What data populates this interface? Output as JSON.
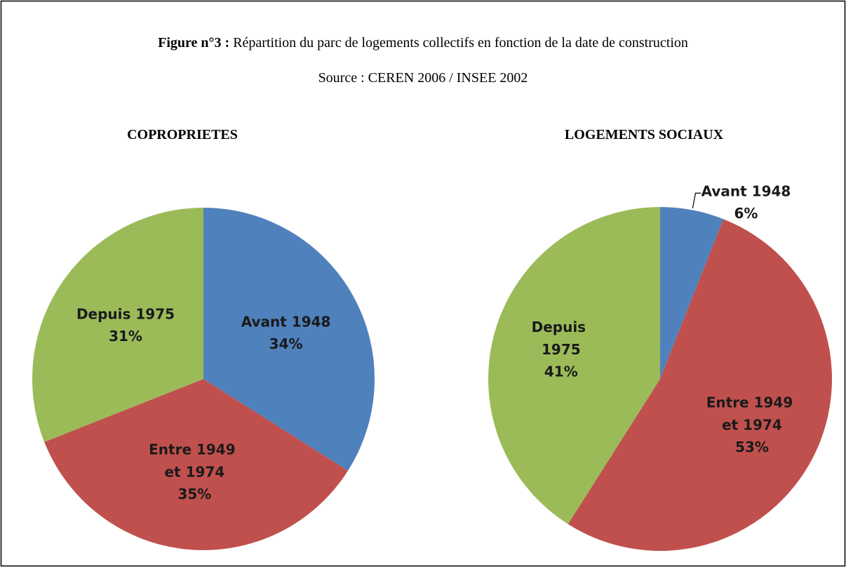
{
  "figure": {
    "label": "Figure n°3 :",
    "title": "Répartition du parc de logements collectifs en fonction de la date de construction",
    "source": "Source : CEREN 2006 / INSEE 2002"
  },
  "chart_data": [
    {
      "type": "pie",
      "title": "COPROPRIETES",
      "categories": [
        "Avant 1948",
        "Entre 1949 et 1974",
        "Depuis 1975"
      ],
      "values": [
        34,
        35,
        31
      ],
      "value_labels": [
        "34%",
        "35%",
        "31%"
      ],
      "colors": [
        "#4f81bd",
        "#c0504d",
        "#9bbb59"
      ]
    },
    {
      "type": "pie",
      "title": "LOGEMENTS SOCIAUX",
      "categories": [
        "Avant 1948",
        "Entre 1949 et 1974",
        "Depuis 1975"
      ],
      "values": [
        6,
        53,
        41
      ],
      "value_labels": [
        "6%",
        "53%",
        "41%"
      ],
      "colors": [
        "#4f81bd",
        "#c0504d",
        "#9bbb59"
      ]
    }
  ]
}
